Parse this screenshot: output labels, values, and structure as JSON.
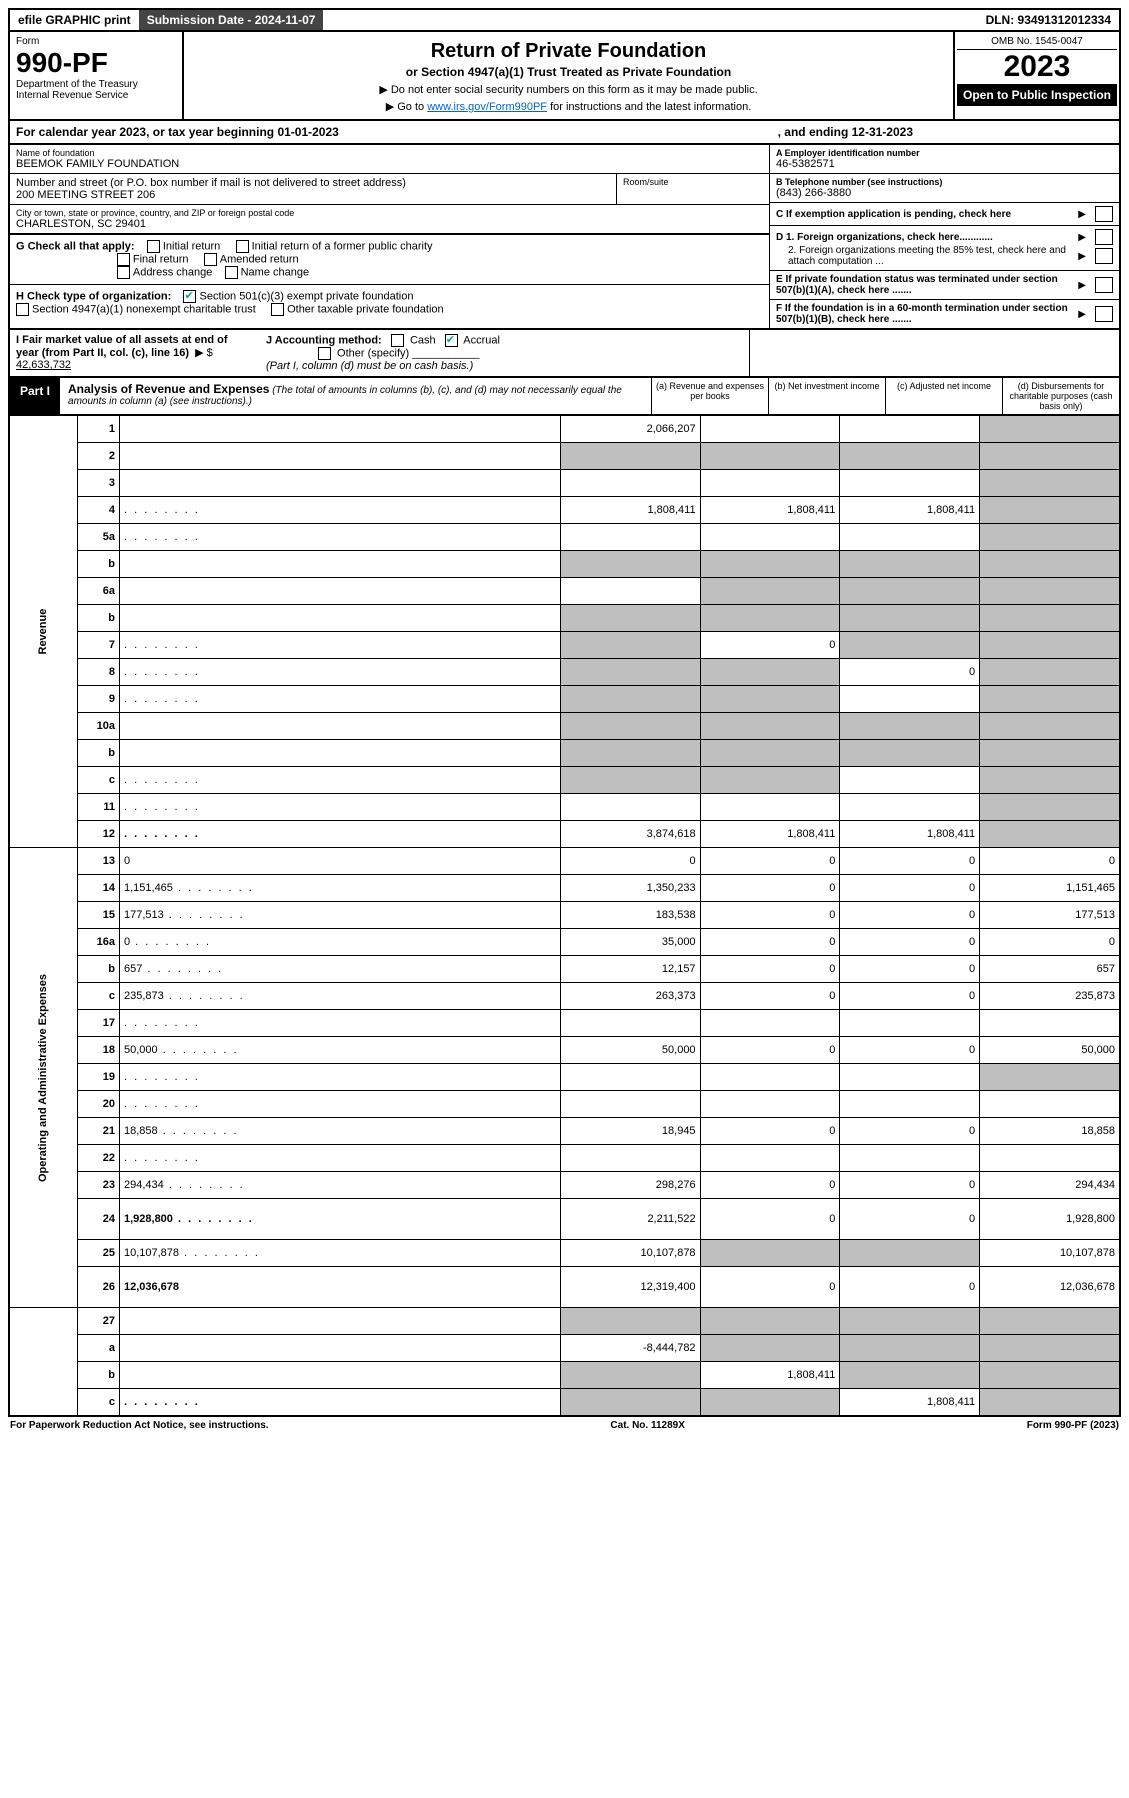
{
  "top": {
    "efile": "efile GRAPHIC print",
    "sub_label": "Submission Date - 2024-11-07",
    "dln": "DLN: 93491312012334"
  },
  "header": {
    "form_word": "Form",
    "form_number": "990-PF",
    "dept1": "Department of the Treasury",
    "dept2": "Internal Revenue Service",
    "title": "Return of Private Foundation",
    "subtitle": "or Section 4947(a)(1) Trust Treated as Private Foundation",
    "note1": "▶ Do not enter social security numbers on this form as it may be made public.",
    "note2_prefix": "▶ Go to ",
    "note2_link": "www.irs.gov/Form990PF",
    "note2_suffix": " for instructions and the latest information.",
    "omb": "OMB No. 1545-0047",
    "year": "2023",
    "open": "Open to Public Inspection"
  },
  "cal": {
    "left": "For calendar year 2023, or tax year beginning 01-01-2023",
    "right": ", and ending 12-31-2023"
  },
  "entity": {
    "name_label": "Name of foundation",
    "name": "BEEMOK FAMILY FOUNDATION",
    "addr_label": "Number and street (or P.O. box number if mail is not delivered to street address)",
    "addr": "200 MEETING STREET 206",
    "room_label": "Room/suite",
    "city_label": "City or town, state or province, country, and ZIP or foreign postal code",
    "city": "CHARLESTON, SC  29401",
    "a_label": "A Employer identification number",
    "a_val": "46-5382571",
    "b_label": "B Telephone number (see instructions)",
    "b_val": "(843) 266-3880",
    "c_label": "C If exemption application is pending, check here",
    "d1": "D 1. Foreign organizations, check here............",
    "d2": "2. Foreign organizations meeting the 85% test, check here and attach computation ...",
    "e_label": "E  If private foundation status was terminated under section 507(b)(1)(A), check here .......",
    "f_label": "F  If the foundation is in a 60-month termination under section 507(b)(1)(B), check here .......",
    "g_label": "G Check all that apply:",
    "g_opts": [
      "Initial return",
      "Initial return of a former public charity",
      "Final return",
      "Amended return",
      "Address change",
      "Name change"
    ],
    "h_label": "H Check type of organization:",
    "h_501": "Section 501(c)(3) exempt private foundation",
    "h_4947": "Section 4947(a)(1) nonexempt charitable trust",
    "h_other": "Other taxable private foundation",
    "i_label": "I Fair market value of all assets at end of year (from Part II, col. (c), line 16)",
    "i_val": "42,633,732",
    "j_label": "J Accounting method:",
    "j_cash": "Cash",
    "j_accrual": "Accrual",
    "j_other": "Other (specify)",
    "j_note": "(Part I, column (d) must be on cash basis.)"
  },
  "part1": {
    "tab": "Part I",
    "heading": "Analysis of Revenue and Expenses",
    "heading_note": " (The total of amounts in columns (b), (c), and (d) may not necessarily equal the amounts in column (a) (see instructions).)",
    "col_a": "(a)   Revenue and expenses per books",
    "col_b": "(b)   Net investment income",
    "col_c": "(c)   Adjusted net income",
    "col_d": "(d)   Disbursements for charitable purposes (cash basis only)"
  },
  "side": {
    "revenue": "Revenue",
    "opex": "Operating and Administrative Expenses"
  },
  "rows": [
    {
      "n": "1",
      "d": "",
      "a": "2,066,207",
      "b": "",
      "c": "",
      "dg": true
    },
    {
      "n": "2",
      "d": "",
      "a": "",
      "b": "",
      "c": "",
      "ag": true,
      "bg": true,
      "cg": true,
      "dg": true,
      "bold_not": true
    },
    {
      "n": "3",
      "d": "",
      "a": "",
      "b": "",
      "c": "",
      "dg": true
    },
    {
      "n": "4",
      "d": "",
      "a": "1,808,411",
      "b": "1,808,411",
      "c": "1,808,411",
      "dg": true,
      "dots": true
    },
    {
      "n": "5a",
      "d": "",
      "a": "",
      "b": "",
      "c": "",
      "dg": true,
      "dots": true
    },
    {
      "n": "b",
      "d": "",
      "a": "",
      "b": "",
      "c": "",
      "ag": true,
      "bg": true,
      "cg": true,
      "dg": true
    },
    {
      "n": "6a",
      "d": "",
      "a": "",
      "b": "",
      "c": "",
      "bg": true,
      "cg": true,
      "dg": true
    },
    {
      "n": "b",
      "d": "",
      "a": "",
      "b": "",
      "c": "",
      "ag": true,
      "bg": true,
      "cg": true,
      "dg": true
    },
    {
      "n": "7",
      "d": "",
      "a": "",
      "b": "0",
      "c": "",
      "ag": true,
      "cg": true,
      "dg": true,
      "dots": true
    },
    {
      "n": "8",
      "d": "",
      "a": "",
      "b": "",
      "c": "0",
      "ag": true,
      "bg": true,
      "dg": true,
      "dots": true
    },
    {
      "n": "9",
      "d": "",
      "a": "",
      "b": "",
      "c": "",
      "ag": true,
      "bg": true,
      "dg": true,
      "dots": true
    },
    {
      "n": "10a",
      "d": "",
      "a": "",
      "b": "",
      "c": "",
      "ag": true,
      "bg": true,
      "cg": true,
      "dg": true
    },
    {
      "n": "b",
      "d": "",
      "a": "",
      "b": "",
      "c": "",
      "ag": true,
      "bg": true,
      "cg": true,
      "dg": true
    },
    {
      "n": "c",
      "d": "",
      "a": "",
      "b": "",
      "c": "",
      "ag": true,
      "bg": true,
      "dg": true,
      "dots": true
    },
    {
      "n": "11",
      "d": "",
      "a": "",
      "b": "",
      "c": "",
      "dg": true,
      "dots": true
    },
    {
      "n": "12",
      "d": "",
      "a": "3,874,618",
      "b": "1,808,411",
      "c": "1,808,411",
      "dg": true,
      "bold": true,
      "dots": true
    }
  ],
  "rows_op": [
    {
      "n": "13",
      "d": "0",
      "a": "0",
      "b": "0",
      "c": "0"
    },
    {
      "n": "14",
      "d": "1,151,465",
      "a": "1,350,233",
      "b": "0",
      "c": "0",
      "dots": true
    },
    {
      "n": "15",
      "d": "177,513",
      "a": "183,538",
      "b": "0",
      "c": "0",
      "dots": true
    },
    {
      "n": "16a",
      "d": "0",
      "a": "35,000",
      "b": "0",
      "c": "0",
      "dots": true
    },
    {
      "n": "b",
      "d": "657",
      "a": "12,157",
      "b": "0",
      "c": "0",
      "dots": true
    },
    {
      "n": "c",
      "d": "235,873",
      "a": "263,373",
      "b": "0",
      "c": "0",
      "dots": true
    },
    {
      "n": "17",
      "d": "",
      "a": "",
      "b": "",
      "c": "",
      "dots": true
    },
    {
      "n": "18",
      "d": "50,000",
      "a": "50,000",
      "b": "0",
      "c": "0",
      "dots": true
    },
    {
      "n": "19",
      "d": "",
      "a": "",
      "b": "",
      "c": "",
      "dg": true,
      "dots": true
    },
    {
      "n": "20",
      "d": "",
      "a": "",
      "b": "",
      "c": "",
      "dots": true
    },
    {
      "n": "21",
      "d": "18,858",
      "a": "18,945",
      "b": "0",
      "c": "0",
      "dots": true
    },
    {
      "n": "22",
      "d": "",
      "a": "",
      "b": "",
      "c": "",
      "dots": true
    },
    {
      "n": "23",
      "d": "294,434",
      "a": "298,276",
      "b": "0",
      "c": "0",
      "dots": true
    },
    {
      "n": "24",
      "d": "1,928,800",
      "a": "2,211,522",
      "b": "0",
      "c": "0",
      "bold": true,
      "dots": true,
      "tall": true
    },
    {
      "n": "25",
      "d": "10,107,878",
      "a": "10,107,878",
      "b": "",
      "c": "",
      "bg": true,
      "cg": true,
      "dots": true
    },
    {
      "n": "26",
      "d": "12,036,678",
      "a": "12,319,400",
      "b": "0",
      "c": "0",
      "bold": true,
      "tall": true
    }
  ],
  "rows_net": [
    {
      "n": "27",
      "d": "",
      "a": "",
      "b": "",
      "c": "",
      "ag": true,
      "bg": true,
      "cg": true,
      "dg": true
    },
    {
      "n": "a",
      "d": "",
      "a": "-8,444,782",
      "b": "",
      "c": "",
      "bg": true,
      "cg": true,
      "dg": true,
      "bold": true
    },
    {
      "n": "b",
      "d": "",
      "a": "",
      "b": "1,808,411",
      "c": "",
      "ag": true,
      "cg": true,
      "dg": true,
      "bold": true
    },
    {
      "n": "c",
      "d": "",
      "a": "",
      "b": "",
      "c": "1,808,411",
      "ag": true,
      "bg": true,
      "dg": true,
      "bold": true,
      "dots": true
    }
  ],
  "footer": {
    "left": "For Paperwork Reduction Act Notice, see instructions.",
    "mid": "Cat. No. 11289X",
    "right": "Form 990-PF (2023)"
  }
}
